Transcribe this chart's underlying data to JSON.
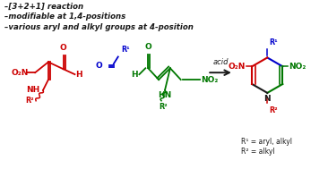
{
  "bg_color": "#ffffff",
  "text_color_black": "#1a1a1a",
  "text_color_red": "#cc0000",
  "text_color_green": "#007700",
  "text_color_blue": "#0000cc",
  "bullet_lines": [
    "–[3+2+1] reaction",
    "–modifiable at 1,4-positions",
    "–various aryl and alkyl groups at 4-position"
  ],
  "figsize": [
    3.66,
    1.89
  ],
  "dpi": 100
}
